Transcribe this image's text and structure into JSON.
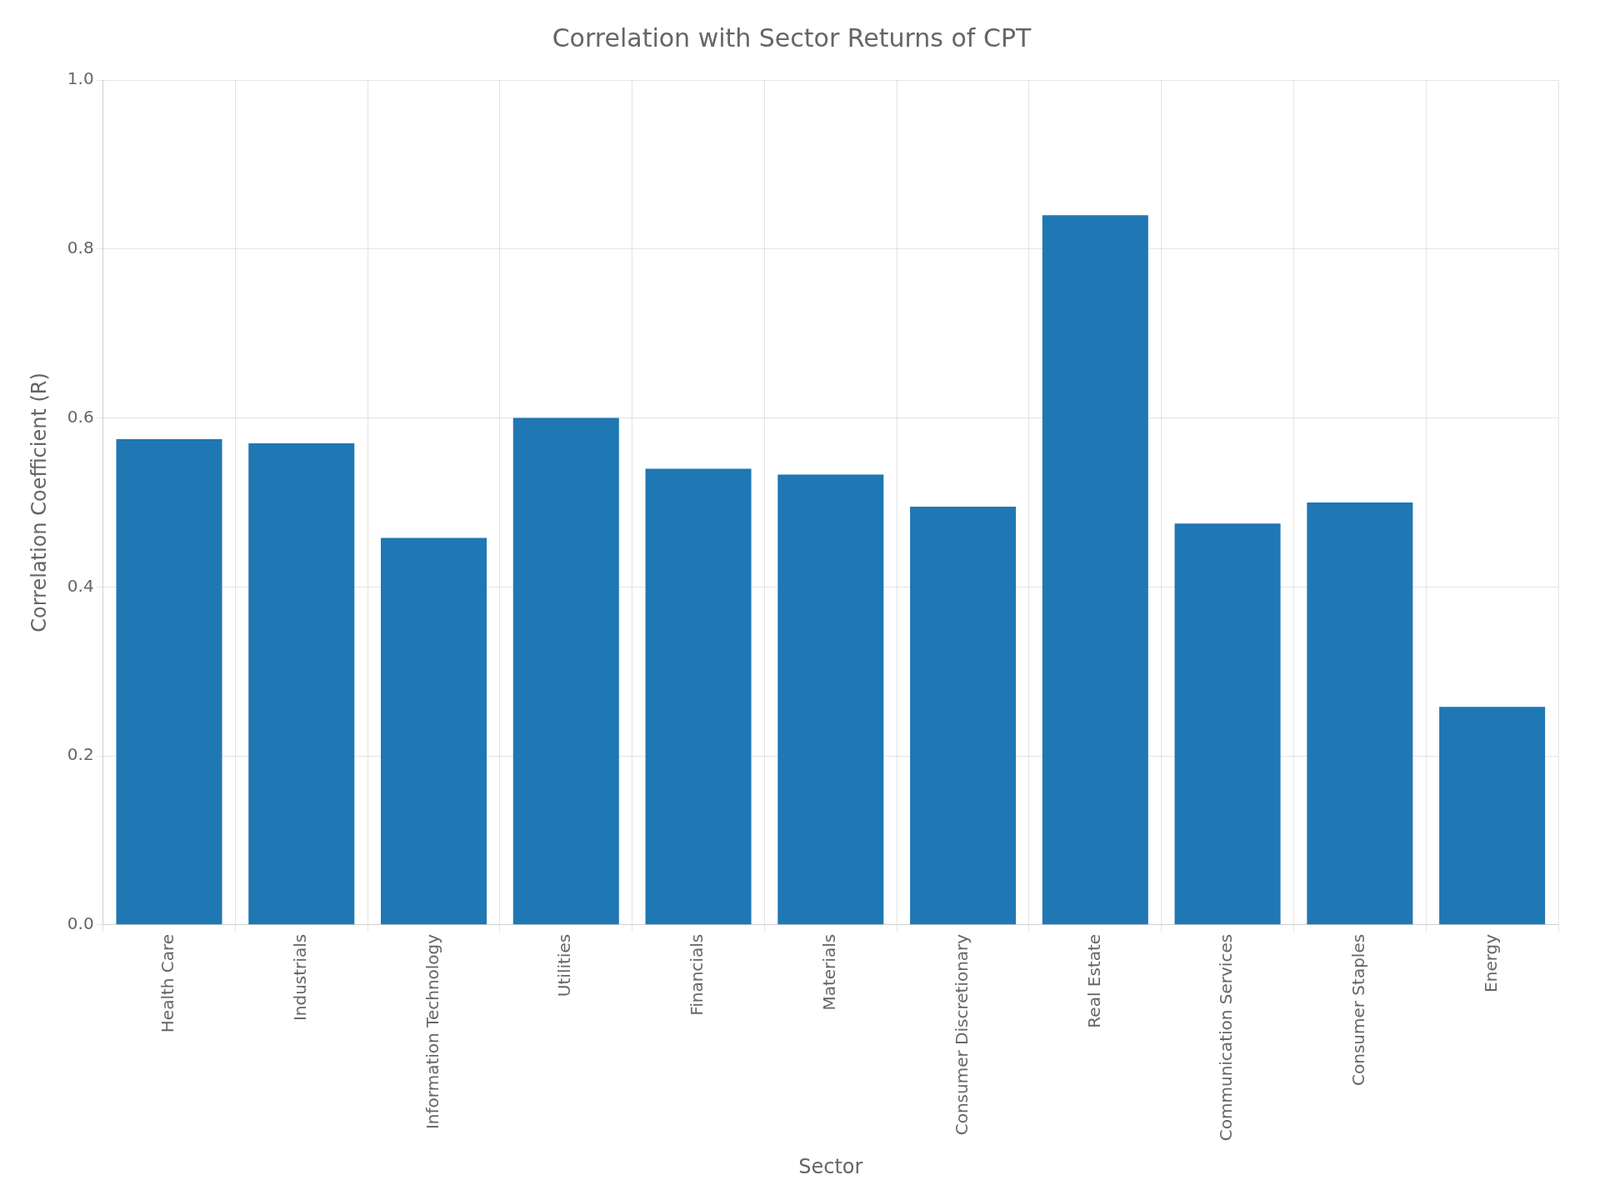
{
  "chart_data": {
    "type": "bar",
    "title": "Correlation with Sector Returns of CPT",
    "xlabel": "Sector",
    "ylabel": "Correlation Coefficient (R)",
    "categories": [
      "Health Care",
      "Industrials",
      "Information Technology",
      "Utilities",
      "Financials",
      "Materials",
      "Consumer Discretionary",
      "Real Estate",
      "Communication Services",
      "Consumer Staples",
      "Energy"
    ],
    "values": [
      0.575,
      0.57,
      0.458,
      0.6,
      0.54,
      0.533,
      0.495,
      0.84,
      0.475,
      0.5,
      0.258
    ],
    "color": "#1f77b4",
    "ylim": [
      0.0,
      1.0
    ],
    "yticks": [
      {
        "value": 0,
        "label": "0.0"
      },
      0.2,
      0.4,
      0.6,
      0.8,
      {
        "value": 1,
        "label": "1.0"
      }
    ],
    "grid": true
  }
}
